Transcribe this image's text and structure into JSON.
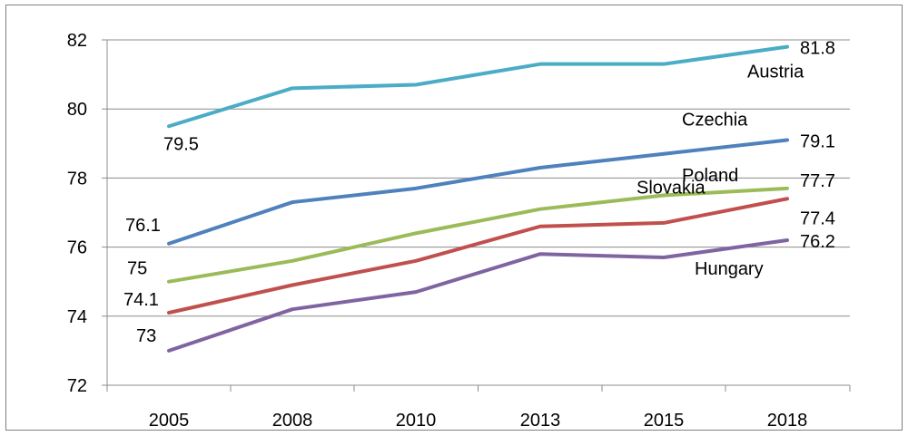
{
  "chart_data": {
    "type": "line",
    "title": "",
    "xlabel": "",
    "ylabel": "",
    "categories": [
      "2005",
      "2008",
      "2010",
      "2013",
      "2015",
      "2018"
    ],
    "ylim": [
      72,
      82
    ],
    "yticks": [
      72,
      74,
      76,
      78,
      80,
      82
    ],
    "grid": "horizontal",
    "legend": "none (series labeled inline)",
    "series": [
      {
        "name": "Austria",
        "color": "#4bacc6",
        "values": [
          79.5,
          80.6,
          80.7,
          81.3,
          81.3,
          81.8
        ],
        "data_labels": [
          {
            "index": 0,
            "text": "79.5"
          },
          {
            "index": 5,
            "text": "81.8"
          }
        ]
      },
      {
        "name": "Czechia",
        "color": "#4f81bd",
        "values": [
          76.1,
          77.3,
          77.7,
          78.3,
          78.7,
          79.1
        ],
        "data_labels": [
          {
            "index": 0,
            "text": "76.1"
          },
          {
            "index": 5,
            "text": "79.1"
          }
        ]
      },
      {
        "name": "Poland",
        "color": "#9bbb59",
        "values": [
          75.0,
          75.6,
          76.4,
          77.1,
          77.5,
          77.7
        ],
        "data_labels": [
          {
            "index": 0,
            "text": "75"
          },
          {
            "index": 5,
            "text": "77.7"
          }
        ]
      },
      {
        "name": "Slovakia",
        "color": "#c0504d",
        "values": [
          74.1,
          74.9,
          75.6,
          76.6,
          76.7,
          77.4
        ],
        "data_labels": [
          {
            "index": 0,
            "text": "74.1"
          },
          {
            "index": 5,
            "text": "77.4"
          }
        ]
      },
      {
        "name": "Hungary",
        "color": "#8064a2",
        "values": [
          73.0,
          74.2,
          74.7,
          75.8,
          75.7,
          76.2
        ],
        "data_labels": [
          {
            "index": 0,
            "text": "73"
          },
          {
            "index": 5,
            "text": "76.2"
          }
        ]
      }
    ]
  }
}
